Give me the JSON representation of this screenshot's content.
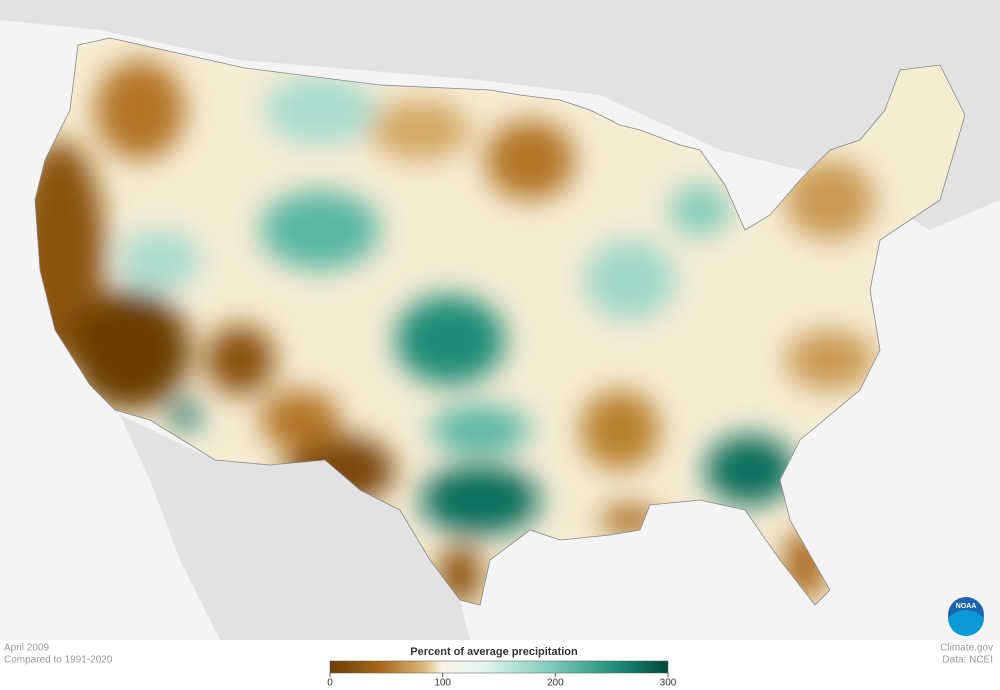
{
  "footer": {
    "period": "April 2009",
    "baseline": "Compared to 1991-2020",
    "credit": "Climate.gov",
    "source": "Data: NCEI"
  },
  "legend": {
    "title": "Percent of average precipitation",
    "ticks": [
      0,
      100,
      200,
      300
    ]
  },
  "logo": "NOAA"
}
